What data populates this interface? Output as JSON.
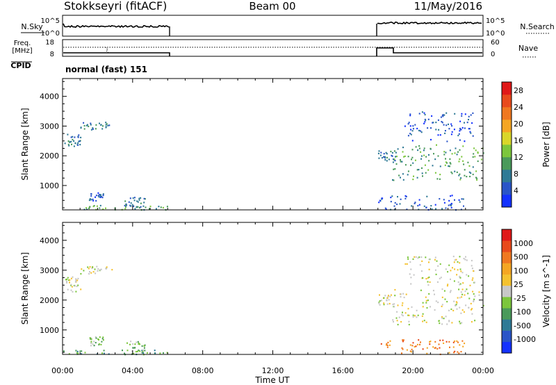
{
  "header": {
    "station": "Stokkseyri (fitACF)",
    "beam": "Beam 00",
    "date": "11/May/2016"
  },
  "panels": {
    "nsky_label": "N.Sky",
    "nsearch_label": "N.Search",
    "freq_label_1": "Freq.",
    "freq_label_2": "[MHz]",
    "nave_label": "Nave",
    "cpid_label": "CPID",
    "cpid_value": "normal (fast) 151",
    "nsky_ticks": [
      "10^5",
      "10^0"
    ],
    "nsearch_ticks": [
      "10^5",
      "10^0"
    ],
    "freq_ticks": [
      "18",
      "8"
    ],
    "nave_ticks": [
      "60",
      "0"
    ]
  },
  "chart_data": [
    {
      "type": "heatmap",
      "name": "Power",
      "xlabel": "Time UT",
      "ylabel": "Slant Range [km]",
      "x_ticks": [
        "00:00",
        "04:00",
        "08:00",
        "12:00",
        "16:00",
        "20:00",
        "00:00"
      ],
      "x_range_hours": [
        0,
        24
      ],
      "y_ticks": [
        1000,
        2000,
        3000,
        4000
      ],
      "ylim": [
        180,
        4600
      ],
      "colorbar": {
        "label": "Power [dB]",
        "ticks": [
          "4",
          "8",
          "12",
          "16",
          "20",
          "24",
          "28"
        ],
        "colors": [
          "#1432ff",
          "#2a55c8",
          "#2f7a96",
          "#4a9a5a",
          "#7cc63c",
          "#d9d62a",
          "#f5a623",
          "#f07820",
          "#e84a1c",
          "#e01818"
        ]
      },
      "regions": [
        {
          "t": [
            0.1,
            1.0
          ],
          "r": [
            2300,
            2800
          ],
          "level": 2
        },
        {
          "t": [
            1.0,
            2.8
          ],
          "r": [
            2900,
            3150
          ],
          "level": 2
        },
        {
          "t": [
            0.0,
            6.0
          ],
          "r": [
            200,
            350
          ],
          "level": 3
        },
        {
          "t": [
            1.5,
            2.3
          ],
          "r": [
            500,
            800
          ],
          "level": 1
        },
        {
          "t": [
            3.5,
            4.7
          ],
          "r": [
            300,
            650
          ],
          "level": 2
        },
        {
          "t": [
            18.0,
            19.0
          ],
          "r": [
            1800,
            2200
          ],
          "level": 2
        },
        {
          "t": [
            18.8,
            24.0
          ],
          "r": [
            1200,
            2400
          ],
          "level": 3
        },
        {
          "t": [
            19.5,
            23.5
          ],
          "r": [
            2500,
            3500
          ],
          "level": 1
        },
        {
          "t": [
            18.0,
            23.0
          ],
          "r": [
            200,
            700
          ],
          "level": 1
        }
      ]
    },
    {
      "type": "heatmap",
      "name": "Velocity",
      "xlabel": "Time UT",
      "ylabel": "Slant Range [km]",
      "x_ticks": [
        "00:00",
        "04:00",
        "08:00",
        "12:00",
        "16:00",
        "20:00",
        "00:00"
      ],
      "x_range_hours": [
        0,
        24
      ],
      "y_ticks": [
        1000,
        2000,
        3000,
        4000
      ],
      "ylim": [
        180,
        4600
      ],
      "colorbar": {
        "label": "Velocity [m s^-1]",
        "ticks": [
          "1000",
          "500",
          "100",
          "25",
          "-25",
          "-100",
          "-500",
          "-1000"
        ],
        "colors": [
          "#1432ff",
          "#2a55c8",
          "#2f7a96",
          "#4a9a5a",
          "#7cc63c",
          "#c8c8c8",
          "#f5c230",
          "#f5a623",
          "#f07820",
          "#e84a1c",
          "#e01818"
        ]
      },
      "regions": [
        {
          "t": [
            0.1,
            1.0
          ],
          "r": [
            2300,
            2800
          ],
          "level": 5
        },
        {
          "t": [
            1.0,
            2.8
          ],
          "r": [
            2900,
            3150
          ],
          "level": 5
        },
        {
          "t": [
            0.0,
            6.0
          ],
          "r": [
            200,
            350
          ],
          "level": 3
        },
        {
          "t": [
            1.5,
            2.3
          ],
          "r": [
            500,
            800
          ],
          "level": 4
        },
        {
          "t": [
            3.5,
            4.7
          ],
          "r": [
            300,
            650
          ],
          "level": 4
        },
        {
          "t": [
            18.0,
            19.0
          ],
          "r": [
            1800,
            2200
          ],
          "level": 5
        },
        {
          "t": [
            18.8,
            24.0
          ],
          "r": [
            1200,
            2400
          ],
          "level": 5
        },
        {
          "t": [
            19.5,
            23.5
          ],
          "r": [
            2500,
            3500
          ],
          "level": 5
        },
        {
          "t": [
            18.0,
            23.0
          ],
          "r": [
            200,
            700
          ],
          "level": 8
        }
      ]
    }
  ]
}
